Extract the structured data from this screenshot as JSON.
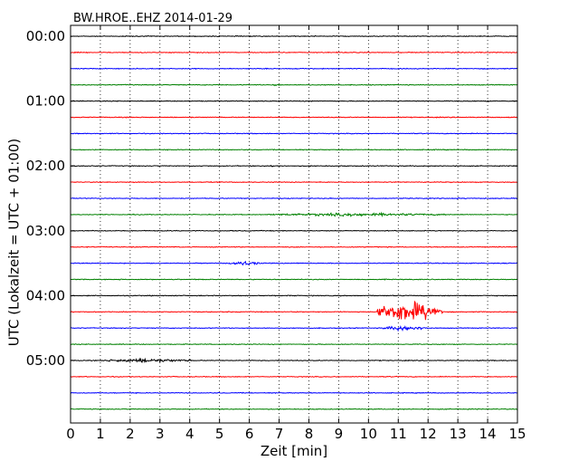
{
  "chart_data": {
    "type": "line",
    "title": "BW.HROE..EHZ 2014-01-29",
    "xlabel": "Zeit  [min]",
    "ylabel": "UTC (Lokalzeit = UTC + 01:00)",
    "xlim": [
      0,
      15
    ],
    "x_ticks": [
      "0",
      "1",
      "2",
      "3",
      "4",
      "5",
      "6",
      "7",
      "8",
      "9",
      "10",
      "11",
      "12",
      "13",
      "14",
      "15"
    ],
    "y_tick_labels": [
      "00:00",
      "01:00",
      "02:00",
      "03:00",
      "04:00",
      "05:00"
    ],
    "grid": "vertical dotted lines at each minute",
    "trace_colors": [
      "#000000",
      "#ff0000",
      "#0000ff",
      "#008000"
    ],
    "trace_interval_minutes": 15,
    "trace_starts": [
      "00:00",
      "00:15",
      "00:30",
      "00:45",
      "01:00",
      "01:15",
      "01:30",
      "01:45",
      "02:00",
      "02:15",
      "02:30",
      "02:45",
      "03:00",
      "03:15",
      "03:30",
      "03:45",
      "04:00",
      "04:15",
      "04:30",
      "04:45",
      "05:00",
      "05:15",
      "05:30",
      "05:45"
    ],
    "events": [
      {
        "trace": "00:45",
        "start": 6.7,
        "end": 7.1,
        "amplitude": 1.5
      },
      {
        "trace": "02:00",
        "start": 6.7,
        "end": 6.95,
        "amplitude": 2.5
      },
      {
        "trace": "02:15",
        "start": 1.9,
        "end": 2.6,
        "amplitude": 1.0
      },
      {
        "trace": "02:30",
        "start": 12.8,
        "end": 13.3,
        "amplitude": 1.5
      },
      {
        "trace": "02:45",
        "start": 6.8,
        "end": 12.8,
        "amplitude": 2.5
      },
      {
        "trace": "03:30",
        "start": 5.3,
        "end": 6.4,
        "amplitude": 3.5
      },
      {
        "trace": "04:15",
        "start": 10.3,
        "end": 12.5,
        "amplitude": 17
      },
      {
        "trace": "04:30",
        "start": 10.5,
        "end": 12.0,
        "amplitude": 4
      },
      {
        "trace": "05:00",
        "start": 1.1,
        "end": 4.1,
        "amplitude": 3
      }
    ]
  }
}
